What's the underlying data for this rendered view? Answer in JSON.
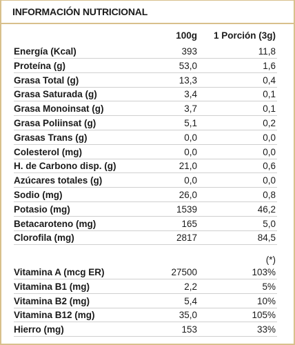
{
  "title": "INFORMACIÓN NUTRICIONAL",
  "columns": {
    "per100": "100g",
    "perPortion": "1 Porción (3g)"
  },
  "nutrients": [
    {
      "label": "Energía (Kcal)",
      "v100": "393",
      "vPor": "11,8"
    },
    {
      "label": "Proteína (g)",
      "v100": "53,0",
      "vPor": "1,6"
    },
    {
      "label": "Grasa Total (g)",
      "v100": "13,3",
      "vPor": "0,4"
    },
    {
      "label": "Grasa Saturada (g)",
      "v100": "3,4",
      "vPor": "0,1"
    },
    {
      "label": "Grasa Monoinsat (g)",
      "v100": "3,7",
      "vPor": "0,1"
    },
    {
      "label": "Grasa Poliinsat (g)",
      "v100": "5,1",
      "vPor": "0,2"
    },
    {
      "label": "Grasas Trans (g)",
      "v100": "0,0",
      "vPor": "0,0"
    },
    {
      "label": "Colesterol (mg)",
      "v100": "0,0",
      "vPor": "0,0"
    },
    {
      "label": "H. de Carbono disp. (g)",
      "v100": "21,0",
      "vPor": "0,6"
    },
    {
      "label": "Azúcares totales (g)",
      "v100": "0,0",
      "vPor": "0,0"
    },
    {
      "label": "Sodio (mg)",
      "v100": "26,0",
      "vPor": "0,8"
    },
    {
      "label": "Potasio (mg)",
      "v100": "1539",
      "vPor": "46,2"
    },
    {
      "label": "Betacaroteno (mg)",
      "v100": "165",
      "vPor": "5,0"
    },
    {
      "label": "Clorofila (mg)",
      "v100": "2817",
      "vPor": "84,5"
    }
  ],
  "footnote_mark": "(*)",
  "vitamins": [
    {
      "label": "Vitamina A (mcg ER)",
      "v100": "27500",
      "vPor": "103%"
    },
    {
      "label": "Vitamina B1 (mg)",
      "v100": "2,2",
      "vPor": "5%"
    },
    {
      "label": "Vitamina B2 (mg)",
      "v100": "5,4",
      "vPor": "10%"
    },
    {
      "label": "Vitamina B12 (mg)",
      "v100": "35,0",
      "vPor": "105%"
    },
    {
      "label": "Hierro (mg)",
      "v100": "153",
      "vPor": "33%"
    }
  ]
}
